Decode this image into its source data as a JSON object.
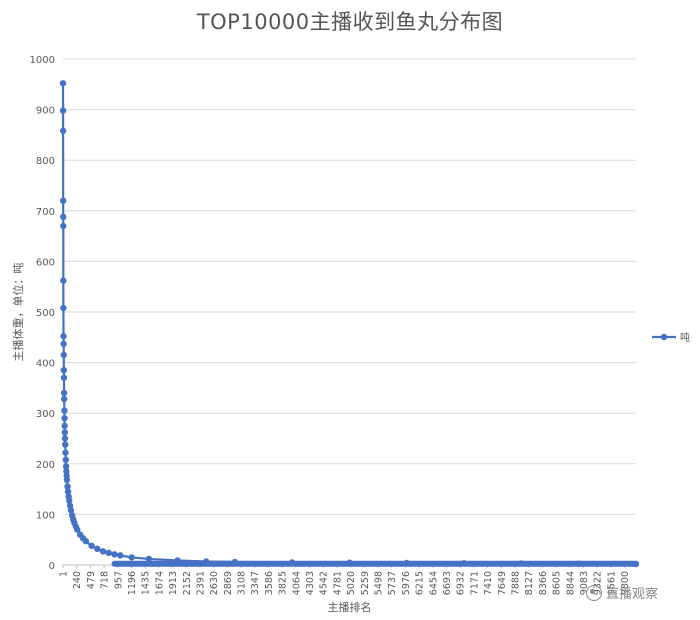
{
  "chart_data": {
    "type": "line",
    "title": "TOP10000主播收到鱼丸分布图",
    "xlabel": "主播排名",
    "ylabel": "主播体重，单位：吨",
    "ylim": [
      0,
      1000
    ],
    "y_ticks": [
      0,
      100,
      200,
      300,
      400,
      500,
      600,
      700,
      800,
      900,
      1000
    ],
    "grid": true,
    "legend_position": "right",
    "x_tick_labels": [
      "1",
      "240",
      "479",
      "718",
      "957",
      "1196",
      "1435",
      "1674",
      "1913",
      "2152",
      "2391",
      "2630",
      "2869",
      "3108",
      "3347",
      "3586",
      "3825",
      "4064",
      "4303",
      "4542",
      "4781",
      "5020",
      "5259",
      "5498",
      "5737",
      "5976",
      "6215",
      "6454",
      "6693",
      "6932",
      "7171",
      "7410",
      "7649",
      "7888",
      "8127",
      "8366",
      "8605",
      "8844",
      "9083",
      "9322",
      "9561",
      "9800"
    ],
    "series": [
      {
        "name": "吨",
        "color": "#4472C4",
        "x": [
          1,
          2,
          3,
          4,
          5,
          6,
          7,
          8,
          10,
          12,
          14,
          16,
          18,
          20,
          22,
          25,
          28,
          30,
          33,
          36,
          40,
          45,
          50,
          55,
          60,
          65,
          70,
          80,
          90,
          100,
          110,
          125,
          140,
          160,
          180,
          200,
          225,
          250,
          300,
          350,
          400,
          500,
          600,
          700,
          800,
          900,
          1000,
          1200,
          1500,
          2000,
          2500,
          3000,
          4000,
          5000,
          6000,
          7000,
          8000,
          9000,
          10000
        ],
        "y": [
          952,
          898,
          858,
          720,
          688,
          670,
          562,
          508,
          452,
          437,
          415,
          385,
          370,
          340,
          328,
          305,
          290,
          275,
          262,
          250,
          238,
          222,
          208,
          195,
          185,
          176,
          168,
          155,
          145,
          135,
          127,
          117,
          108,
          98,
          90,
          83,
          76,
          70,
          60,
          53,
          47,
          38,
          32,
          27,
          24,
          21,
          19,
          15,
          12,
          9,
          7,
          6,
          5,
          4.5,
          4,
          3.5,
          3,
          2.5,
          2
        ]
      }
    ]
  },
  "watermark": {
    "text": "直播观察"
  }
}
